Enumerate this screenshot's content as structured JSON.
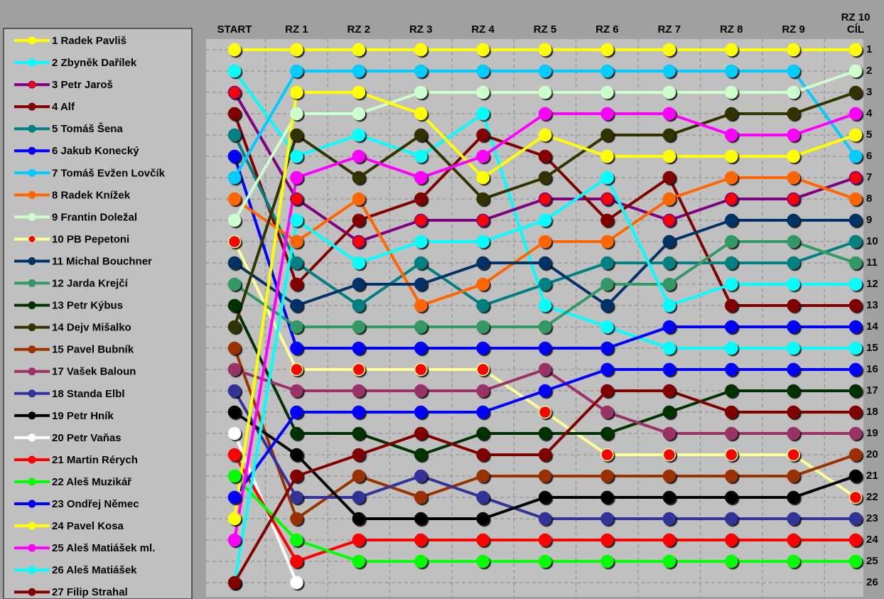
{
  "chart_data": {
    "type": "line",
    "categories": [
      "START",
      "RZ 1",
      "RZ 2",
      "RZ 3",
      "RZ 4",
      "RZ 5",
      "RZ 6",
      "RZ 7",
      "RZ 8",
      "RZ 9",
      "RZ 10\nCÍL"
    ],
    "ylim": [
      1,
      26
    ],
    "yticks": [
      1,
      2,
      3,
      4,
      5,
      6,
      7,
      8,
      9,
      10,
      11,
      12,
      13,
      14,
      15,
      16,
      17,
      18,
      19,
      20,
      21,
      22,
      23,
      24,
      25,
      26
    ],
    "grid": true,
    "series": [
      {
        "name": "1 Radek Pavliš",
        "color": "#ffff00",
        "values": [
          1,
          1,
          1,
          1,
          1,
          1,
          1,
          1,
          1,
          1,
          1
        ]
      },
      {
        "name": "2 Zbyněk Dařílek",
        "color": "#00ffff",
        "values": [
          2,
          6,
          5,
          6,
          4,
          13,
          14,
          15,
          15,
          15,
          15
        ]
      },
      {
        "name": "3 Petr Jaroš",
        "color": "#800080",
        "marker_color": "#ff0000",
        "values": [
          3,
          8,
          10,
          9,
          9,
          8,
          8,
          9,
          8,
          8,
          7
        ]
      },
      {
        "name": "4 Alf",
        "color": "#800000",
        "values": [
          4,
          12,
          9,
          8,
          5,
          6,
          9,
          7,
          13,
          13,
          13
        ]
      },
      {
        "name": "5 Tomáš Šena",
        "color": "#008080",
        "values": [
          5,
          11,
          13,
          11,
          13,
          12,
          11,
          11,
          11,
          11,
          10
        ]
      },
      {
        "name": "6 Jakub Konecký",
        "color": "#0000ff",
        "values": [
          6,
          15,
          15,
          15,
          15,
          15,
          15,
          14,
          14,
          14,
          14
        ]
      },
      {
        "name": "7 Tomáš Evžen Lovčík",
        "color": "#00ccff",
        "values": [
          7,
          2,
          2,
          2,
          2,
          2,
          2,
          2,
          2,
          2,
          6
        ]
      },
      {
        "name": "8 Radek Knížek",
        "color": "#ff6600",
        "values": [
          8,
          10,
          8,
          13,
          12,
          10,
          10,
          8,
          7,
          7,
          8
        ]
      },
      {
        "name": "9 Frantin Doležal",
        "color": "#ccffcc",
        "values": [
          9,
          4,
          4,
          3,
          3,
          3,
          3,
          3,
          3,
          3,
          2
        ]
      },
      {
        "name": "10 PB Pepetoni",
        "color": "#ffff99",
        "marker_color": "#ff0000",
        "values": [
          10,
          16,
          16,
          16,
          16,
          18,
          20,
          20,
          20,
          20,
          22
        ]
      },
      {
        "name": "11 Michal Bouchner",
        "color": "#003366",
        "values": [
          11,
          13,
          12,
          12,
          11,
          11,
          13,
          10,
          9,
          9,
          9
        ]
      },
      {
        "name": "12 Jarda Krejčí",
        "color": "#339966",
        "values": [
          12,
          14,
          14,
          14,
          14,
          14,
          12,
          12,
          10,
          10,
          11
        ]
      },
      {
        "name": "13 Petr Kýbus",
        "color": "#003300",
        "values": [
          13,
          19,
          19,
          20,
          19,
          19,
          19,
          18,
          17,
          17,
          17
        ]
      },
      {
        "name": "14 Dejv Mišalko",
        "color": "#333300",
        "values": [
          14,
          5,
          7,
          5,
          8,
          7,
          5,
          5,
          4,
          4,
          3
        ]
      },
      {
        "name": "15 Pavel Bubník",
        "color": "#993300",
        "values": [
          15,
          23,
          21,
          22,
          21,
          21,
          21,
          21,
          21,
          21,
          20
        ]
      },
      {
        "name": "17 Vašek Baloun",
        "color": "#993366",
        "values": [
          16,
          17,
          17,
          17,
          17,
          16,
          18,
          19,
          19,
          19,
          19
        ]
      },
      {
        "name": "18 Standa Elbl",
        "color": "#333399",
        "values": [
          17,
          22,
          22,
          21,
          22,
          23,
          23,
          23,
          23,
          23,
          23
        ]
      },
      {
        "name": "19 Petr Hník",
        "color": "#000000",
        "values": [
          18,
          20,
          23,
          23,
          23,
          22,
          22,
          22,
          22,
          22,
          21
        ]
      },
      {
        "name": "20 Petr Vaňas",
        "color": "#ffffff",
        "values": [
          19,
          26,
          null,
          null,
          null,
          null,
          null,
          null,
          null,
          null,
          null
        ]
      },
      {
        "name": "21 Martin Rérych",
        "color": "#ff0000",
        "values": [
          20,
          25,
          24,
          24,
          24,
          24,
          24,
          24,
          24,
          24,
          24
        ]
      },
      {
        "name": "22 Aleš Muzikář",
        "color": "#00ff00",
        "values": [
          21,
          24,
          25,
          25,
          25,
          25,
          25,
          25,
          25,
          25,
          25
        ]
      },
      {
        "name": "23 Ondřej Němec",
        "color": "#0000ff",
        "values": [
          22,
          18,
          18,
          18,
          18,
          17,
          16,
          16,
          16,
          16,
          16
        ]
      },
      {
        "name": "24 Pavel Kosa",
        "color": "#ffff00",
        "values": [
          23,
          3,
          3,
          4,
          7,
          5,
          6,
          6,
          6,
          6,
          5
        ]
      },
      {
        "name": "25 Aleš Matiášek ml.",
        "color": "#ff00ff",
        "values": [
          24,
          7,
          6,
          7,
          6,
          4,
          4,
          4,
          5,
          5,
          4
        ]
      },
      {
        "name": "26 Aleš Matiášek",
        "color": "#00ffff",
        "values": [
          26,
          9,
          11,
          10,
          10,
          9,
          7,
          13,
          12,
          12,
          12
        ]
      },
      {
        "name": "27 Filip Strahal",
        "color": "#800000",
        "values": [
          26,
          21,
          20,
          19,
          20,
          20,
          17,
          17,
          18,
          18,
          18
        ]
      }
    ]
  }
}
